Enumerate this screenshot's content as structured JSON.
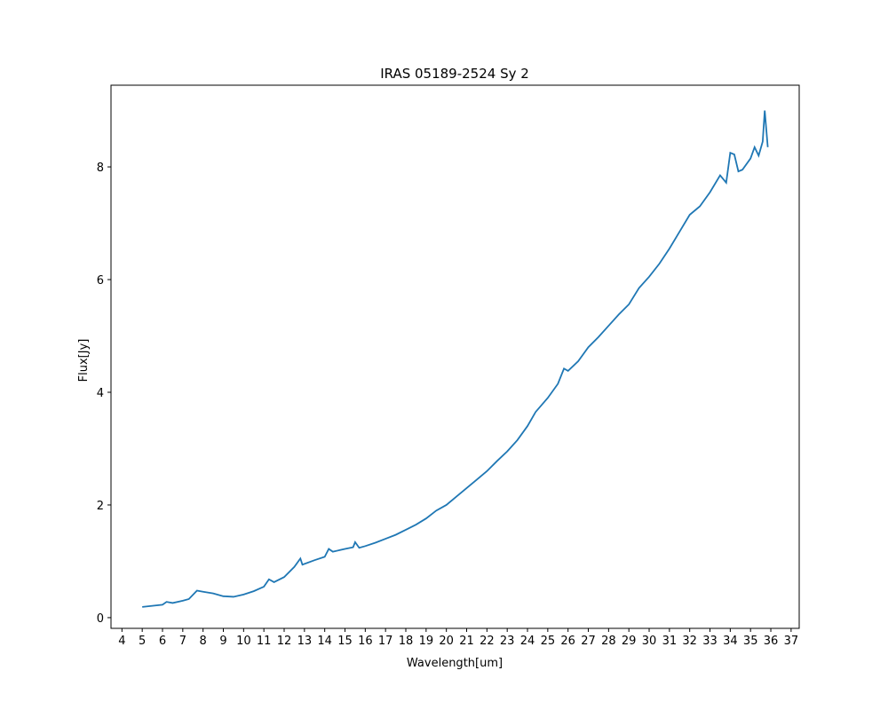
{
  "chart_data": {
    "type": "line",
    "title": "IRAS 05189-2524 Sy 2",
    "x_label": "Wavelength[um]",
    "y_label": "Flux[Jy]",
    "x": [
      5.0,
      5.5,
      6.0,
      6.2,
      6.5,
      7.0,
      7.3,
      7.7,
      8.0,
      8.5,
      9.0,
      9.5,
      10.0,
      10.5,
      11.0,
      11.25,
      11.5,
      12.0,
      12.5,
      12.8,
      12.9,
      13.5,
      14.0,
      14.2,
      14.4,
      15.0,
      15.4,
      15.5,
      15.7,
      16.0,
      16.5,
      17.0,
      17.5,
      18.0,
      18.5,
      19.0,
      19.5,
      20.0,
      20.5,
      21.0,
      21.5,
      22.0,
      22.5,
      23.0,
      23.5,
      24.0,
      24.4,
      25.0,
      25.5,
      25.8,
      26.0,
      26.5,
      27.0,
      27.5,
      28.0,
      28.5,
      29.0,
      29.5,
      30.0,
      30.5,
      31.0,
      31.5,
      32.0,
      32.5,
      33.0,
      33.5,
      33.8,
      34.0,
      34.2,
      34.4,
      34.6,
      35.0,
      35.2,
      35.4,
      35.6,
      35.7,
      35.85
    ],
    "series": [
      {
        "name": "flux",
        "color": "#1f77b4",
        "values": [
          0.19,
          0.21,
          0.23,
          0.28,
          0.26,
          0.3,
          0.33,
          0.48,
          0.46,
          0.43,
          0.38,
          0.37,
          0.41,
          0.47,
          0.55,
          0.68,
          0.63,
          0.72,
          0.9,
          1.05,
          0.94,
          1.02,
          1.08,
          1.22,
          1.17,
          1.22,
          1.25,
          1.34,
          1.24,
          1.27,
          1.33,
          1.4,
          1.47,
          1.56,
          1.65,
          1.76,
          1.9,
          2.0,
          2.15,
          2.3,
          2.45,
          2.6,
          2.78,
          2.95,
          3.15,
          3.4,
          3.65,
          3.9,
          4.15,
          4.42,
          4.38,
          4.55,
          4.8,
          4.98,
          5.18,
          5.38,
          5.56,
          5.85,
          6.05,
          6.28,
          6.55,
          6.85,
          7.15,
          7.3,
          7.55,
          7.85,
          7.72,
          8.25,
          8.22,
          7.92,
          7.95,
          8.15,
          8.35,
          8.2,
          8.45,
          9.0,
          8.35
        ]
      }
    ],
    "xlim": [
      3.46,
      37.4
    ],
    "ylim": [
      -0.19,
      9.45
    ],
    "xticks": [
      4,
      5,
      6,
      7,
      8,
      9,
      10,
      11,
      12,
      13,
      14,
      15,
      16,
      17,
      18,
      19,
      20,
      21,
      22,
      23,
      24,
      25,
      26,
      27,
      28,
      29,
      30,
      31,
      32,
      33,
      34,
      35,
      36,
      37
    ],
    "yticks": [
      0,
      2,
      4,
      6,
      8
    ]
  }
}
